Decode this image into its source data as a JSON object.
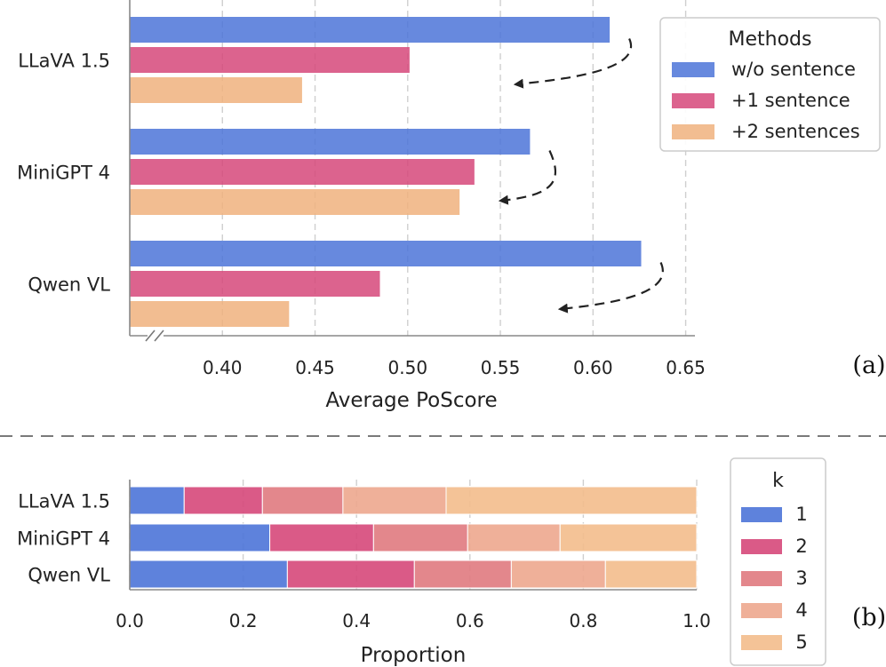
{
  "chart_data": [
    {
      "type": "bar",
      "orientation": "horizontal",
      "panel_label": "(a)",
      "categories": [
        "LLaVA 1.5",
        "MiniGPT 4",
        "Qwen VL"
      ],
      "series": [
        {
          "name": "w/o sentence",
          "color": "#4c74d8",
          "values": [
            0.609,
            0.566,
            0.626
          ]
        },
        {
          "name": "+1 sentence",
          "color": "#d6487a",
          "values": [
            0.501,
            0.536,
            0.485
          ]
        },
        {
          "name": "+2 sentences",
          "color": "#f0b27e",
          "values": [
            0.443,
            0.528,
            0.436
          ]
        }
      ],
      "xlabel": "Average PoScore",
      "xlim": [
        0.35,
        0.655
      ],
      "xticks": [
        "0.40",
        "0.45",
        "0.50",
        "0.55",
        "0.60",
        "0.65"
      ],
      "legend_title": "Methods",
      "legend_position": "top-right",
      "grid": "x-dashed",
      "axis_break": true,
      "annotations": "dashed curved arrows from w/o sentence bar end toward +2 sentences bar end"
    },
    {
      "type": "bar",
      "orientation": "horizontal",
      "stacked": true,
      "panel_label": "(b)",
      "categories": [
        "LLaVA 1.5",
        "MiniGPT 4",
        "Qwen VL"
      ],
      "series": [
        {
          "name": "1",
          "color": "#4c74d8",
          "values": [
            0.096,
            0.247,
            0.278
          ]
        },
        {
          "name": "2",
          "color": "#d6487a",
          "values": [
            0.138,
            0.183,
            0.224
          ]
        },
        {
          "name": "3",
          "color": "#e07a80",
          "values": [
            0.142,
            0.166,
            0.171
          ]
        },
        {
          "name": "4",
          "color": "#eda78e",
          "values": [
            0.182,
            0.163,
            0.166
          ]
        },
        {
          "name": "5",
          "color": "#f3bd8c",
          "values": [
            0.442,
            0.241,
            0.161
          ]
        }
      ],
      "xlabel": "Proportion",
      "xlim": [
        0,
        1
      ],
      "xticks": [
        "0.0",
        "0.2",
        "0.4",
        "0.6",
        "0.8",
        "1.0"
      ],
      "legend_title": "k",
      "legend_position": "right",
      "grid": "x-dashed"
    }
  ]
}
